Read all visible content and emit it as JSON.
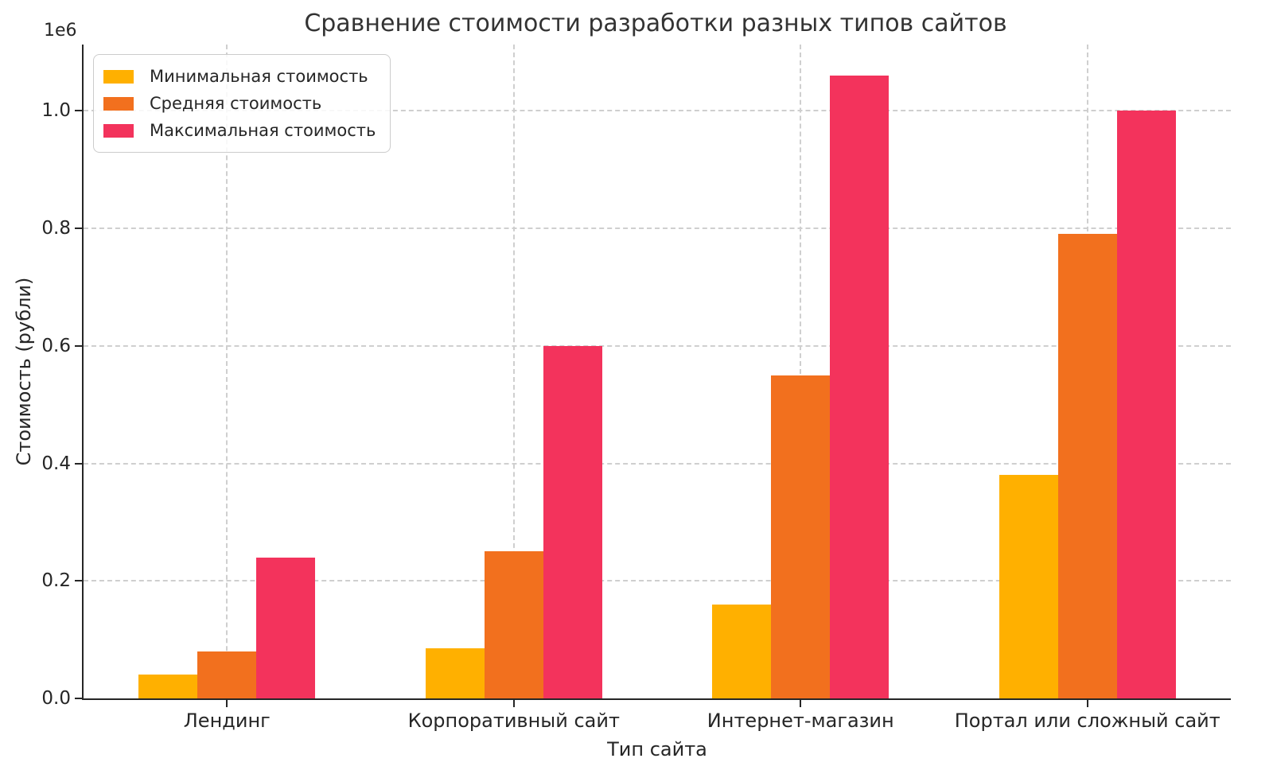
{
  "figure": {
    "offset_text": "1e6"
  },
  "chart_data": {
    "type": "bar",
    "title": "Сравнение стоимости разработки разных типов сайтов",
    "xlabel": "Тип сайта",
    "ylabel": "Стоимость (рубли)",
    "y_axis_multiplier": "1e6",
    "categories": [
      "Лендинг",
      "Корпоративный сайт",
      "Интернет-магазин",
      "Портал или сложный сайт"
    ],
    "series": [
      {
        "name": "Минимальная стоимость",
        "color": "#FFB000",
        "values": [
          40000,
          85000,
          160000,
          380000
        ]
      },
      {
        "name": "Средняя стоимость",
        "color": "#F2701E",
        "values": [
          80000,
          250000,
          550000,
          790000
        ]
      },
      {
        "name": "Максимальная стоимость",
        "color": "#F3335C",
        "values": [
          240000,
          600000,
          1060000,
          1000000
        ]
      }
    ],
    "ylim": [
      0,
      1112700
    ],
    "yticks": [
      0,
      200000,
      400000,
      600000,
      800000,
      1000000
    ],
    "ytick_labels": [
      "0.0",
      "0.2",
      "0.4",
      "0.6",
      "0.8",
      "1.0"
    ],
    "grid": true,
    "grid_style": "dashed",
    "legend_position": "upper left",
    "colors": {
      "grid": "#CFCFCF",
      "spine": "#262626",
      "text": "#262626"
    }
  }
}
